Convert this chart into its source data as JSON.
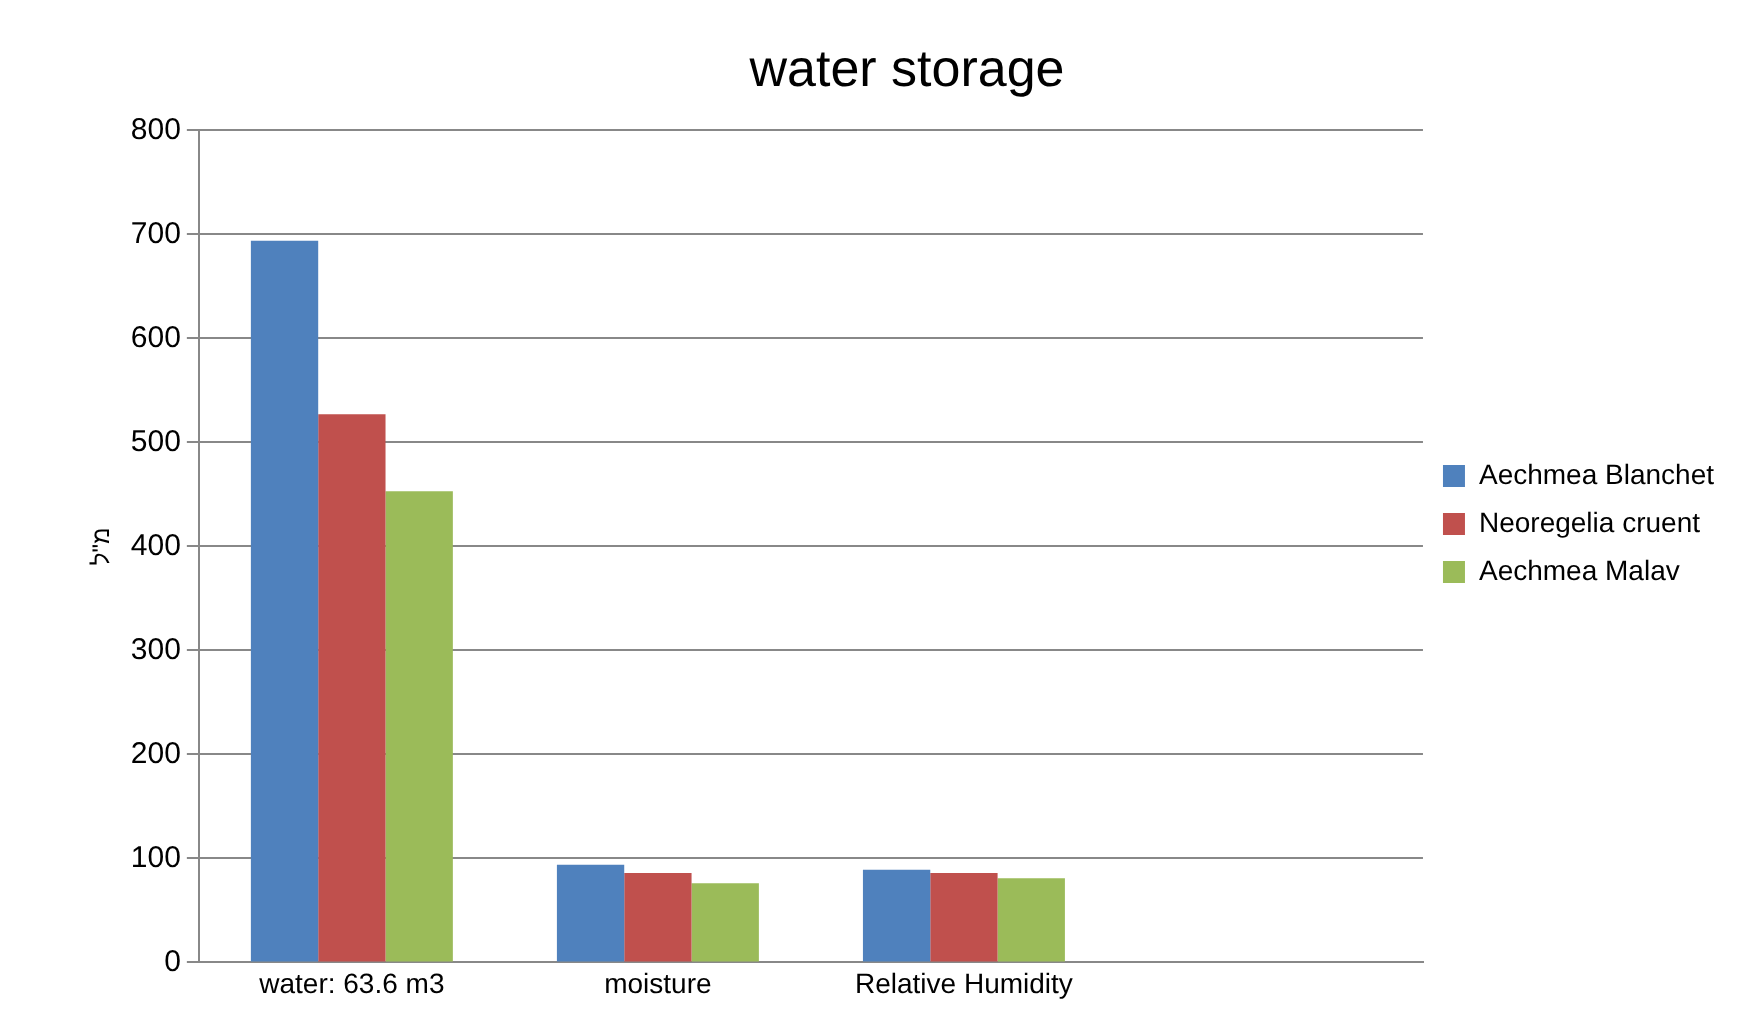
{
  "chart_data": {
    "type": "bar",
    "title": "water storage",
    "ylabel": "מ\"ל",
    "categories": [
      "water: 63.6 m3",
      "moisture",
      "Relative Humidity",
      null
    ],
    "series": [
      {
        "name": "Aechmea Blanchet",
        "color": "#4f81bd",
        "values": [
          694,
          94,
          89,
          null
        ]
      },
      {
        "name": "Neoregelia cruent",
        "color": "#c0504d",
        "values": [
          527,
          86,
          86,
          null
        ]
      },
      {
        "name": "Aechmea Malav",
        "color": "#9bbb59",
        "values": [
          453,
          76,
          81,
          null
        ]
      }
    ],
    "ylim": [
      0,
      800
    ],
    "yticks": [
      0,
      100,
      200,
      300,
      400,
      500,
      600,
      700,
      800
    ],
    "grid": "y",
    "legend": "right"
  }
}
